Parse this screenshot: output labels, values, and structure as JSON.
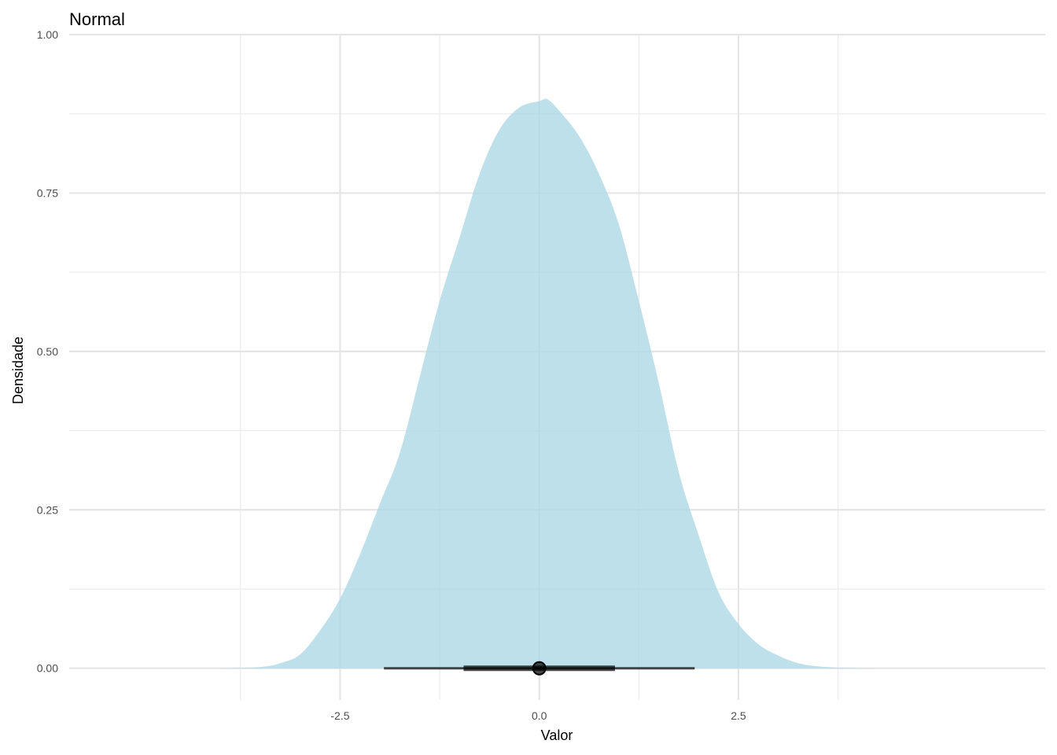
{
  "chart_data": {
    "type": "area",
    "title": "Normal",
    "xlabel": "Valor",
    "ylabel": "Densidade",
    "xlim": [
      -5.9,
      6.35
    ],
    "ylim": [
      -0.05,
      1.0
    ],
    "x_ticks": [
      -2.5,
      0.0,
      2.5
    ],
    "x_tick_labels": [
      "-2.5",
      "0.0",
      "2.5"
    ],
    "x_minor_ticks": [
      -3.75,
      -1.25,
      1.25,
      3.75
    ],
    "y_ticks": [
      0.0,
      0.25,
      0.5,
      0.75,
      1.0
    ],
    "y_tick_labels": [
      "0.00",
      "0.25",
      "0.50",
      "0.75",
      "1.00"
    ],
    "y_minor_ticks": [
      0.125,
      0.375,
      0.625,
      0.875
    ],
    "grid": true,
    "density": {
      "fill_color": "#add8e6",
      "x": [
        -4.0,
        -3.5,
        -3.25,
        -3.0,
        -2.75,
        -2.5,
        -2.25,
        -2.0,
        -1.75,
        -1.5,
        -1.25,
        -1.0,
        -0.75,
        -0.5,
        -0.25,
        0.0,
        0.1,
        0.25,
        0.5,
        0.75,
        1.0,
        1.25,
        1.5,
        1.75,
        2.0,
        2.25,
        2.5,
        2.75,
        3.0,
        3.25,
        3.5,
        3.75,
        4.0,
        4.25
      ],
      "y": [
        0.0,
        0.002,
        0.008,
        0.022,
        0.06,
        0.11,
        0.18,
        0.26,
        0.34,
        0.46,
        0.58,
        0.68,
        0.78,
        0.85,
        0.885,
        0.895,
        0.898,
        0.88,
        0.84,
        0.78,
        0.7,
        0.58,
        0.45,
        0.31,
        0.21,
        0.12,
        0.07,
        0.038,
        0.02,
        0.008,
        0.003,
        0.001,
        0.0003,
        0.0
      ]
    },
    "point_interval": {
      "point": 0.0,
      "inner_interval": [
        -0.95,
        0.95
      ],
      "outer_interval": [
        -1.95,
        1.95
      ],
      "color": "#000000"
    }
  }
}
